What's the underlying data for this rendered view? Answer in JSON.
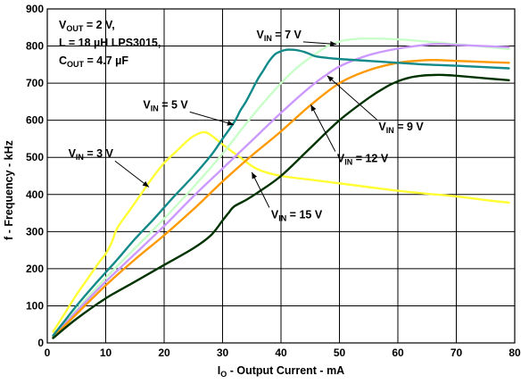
{
  "chart_data": {
    "type": "line",
    "xlabel": {
      "main": "I",
      "sub": "O",
      "rest": " - Output Current - mA"
    },
    "ylabel": "f - Frequency - kHz",
    "xlim": [
      0,
      80
    ],
    "ylim": [
      0,
      900
    ],
    "xticks": [
      0,
      10,
      20,
      30,
      40,
      50,
      60,
      70,
      80
    ],
    "yticks": [
      0,
      100,
      200,
      300,
      400,
      500,
      600,
      700,
      800,
      900
    ],
    "grid": true,
    "conditions": [
      {
        "parts": [
          {
            "t": "V"
          },
          {
            "t": "OUT",
            "sub": true
          },
          {
            "t": " = 2 V,"
          }
        ]
      },
      {
        "parts": [
          {
            "t": "L = 18 µH LPS3015,"
          }
        ]
      },
      {
        "parts": [
          {
            "t": "C"
          },
          {
            "t": "OUT",
            "sub": true
          },
          {
            "t": " = 4.7 µF"
          }
        ]
      }
    ],
    "series": [
      {
        "name": "VIN = 3 V",
        "label": {
          "main": "V",
          "sub": "IN",
          "rest": " = 3 V"
        },
        "color": "#ffff33",
        "x": [
          1,
          3,
          5,
          7,
          9,
          10,
          11,
          12,
          14,
          16,
          18,
          20,
          22,
          24,
          25,
          26,
          27,
          28,
          30,
          33,
          36,
          40,
          45,
          50,
          55,
          60,
          65,
          70,
          75,
          79
        ],
        "y": [
          30,
          80,
          130,
          175,
          220,
          240,
          270,
          310,
          355,
          400,
          445,
          485,
          515,
          545,
          557,
          565,
          568,
          560,
          535,
          500,
          468,
          450,
          440,
          430,
          420,
          410,
          402,
          395,
          385,
          378
        ]
      },
      {
        "name": "VIN = 5 V",
        "label": {
          "main": "V",
          "sub": "IN",
          "rest": " = 5 V"
        },
        "color": "#138a8a",
        "x": [
          1,
          3,
          5,
          8,
          10,
          12,
          15,
          18,
          20,
          22,
          25,
          28,
          30,
          32,
          33,
          34,
          35,
          36,
          37,
          38,
          39,
          40,
          41,
          42,
          43,
          44,
          45,
          46,
          48,
          50,
          55,
          60,
          65,
          70,
          75,
          79
        ],
        "y": [
          20,
          60,
          100,
          155,
          190,
          225,
          280,
          330,
          365,
          400,
          450,
          505,
          550,
          595,
          625,
          650,
          680,
          710,
          735,
          760,
          778,
          786,
          790,
          790,
          788,
          784,
          778,
          772,
          768,
          765,
          760,
          755,
          750,
          747,
          743,
          740
        ]
      },
      {
        "name": "VIN = 7 V",
        "label": {
          "main": "V",
          "sub": "IN",
          "rest": " = 7 V"
        },
        "color": "#c8ffc8",
        "x": [
          1,
          5,
          10,
          15,
          20,
          25,
          30,
          35,
          40,
          43,
          46,
          48,
          50,
          52,
          54,
          56,
          60,
          65,
          70,
          75,
          79
        ],
        "y": [
          18,
          90,
          175,
          255,
          335,
          420,
          510,
          610,
          700,
          745,
          780,
          800,
          812,
          818,
          820,
          820,
          818,
          812,
          805,
          798,
          792
        ]
      },
      {
        "name": "VIN = 9 V",
        "label": {
          "main": "V",
          "sub": "IN",
          "rest": " = 9 V"
        },
        "color": "#cc99ff",
        "x": [
          1,
          5,
          10,
          15,
          20,
          25,
          30,
          35,
          40,
          45,
          48,
          50,
          53,
          56,
          60,
          63,
          66,
          68,
          70,
          75,
          79
        ],
        "y": [
          16,
          85,
          165,
          240,
          315,
          395,
          470,
          545,
          620,
          690,
          725,
          745,
          765,
          780,
          793,
          800,
          805,
          805,
          803,
          800,
          797
        ]
      },
      {
        "name": "VIN = 12 V",
        "label": {
          "main": "V",
          "sub": "IN",
          "rest": " = 12 V"
        },
        "color": "#ff9900",
        "x": [
          1,
          5,
          10,
          15,
          20,
          25,
          30,
          35,
          40,
          45,
          50,
          55,
          60,
          63,
          65,
          67,
          70,
          75,
          79
        ],
        "y": [
          15,
          78,
          155,
          225,
          290,
          360,
          435,
          505,
          570,
          640,
          700,
          735,
          755,
          760,
          762,
          762,
          760,
          757,
          755
        ]
      },
      {
        "name": "VIN = 15 V",
        "label": {
          "main": "V",
          "sub": "IN",
          "rest": " = 15 V"
        },
        "color": "#003300",
        "x": [
          1,
          5,
          10,
          15,
          20,
          25,
          28,
          30,
          31,
          32,
          34,
          36,
          40,
          45,
          50,
          55,
          58,
          60,
          62,
          64,
          66,
          68,
          70,
          75,
          79
        ],
        "y": [
          13,
          65,
          120,
          165,
          210,
          255,
          290,
          330,
          350,
          368,
          385,
          405,
          450,
          525,
          600,
          660,
          690,
          705,
          715,
          720,
          722,
          722,
          720,
          713,
          708
        ]
      }
    ],
    "annotations": [
      {
        "series": 0,
        "label_at": [
          3.6,
          500
        ],
        "point_to": [
          17.4,
          420
        ]
      },
      {
        "series": 1,
        "label_at": [
          16.4,
          632
        ],
        "point_to": [
          31.9,
          588
        ]
      },
      {
        "series": 2,
        "label_at": [
          35.8,
          821
        ],
        "point_to": [
          49.5,
          805
        ]
      },
      {
        "series": 3,
        "label_at": [
          56.7,
          573
        ],
        "point_to": [
          47.9,
          720
        ]
      },
      {
        "series": 4,
        "label_at": [
          49.6,
          487
        ],
        "point_to": [
          45.1,
          642
        ]
      },
      {
        "series": 5,
        "label_at": [
          38.3,
          336
        ],
        "point_to": [
          35.0,
          460
        ]
      }
    ]
  }
}
